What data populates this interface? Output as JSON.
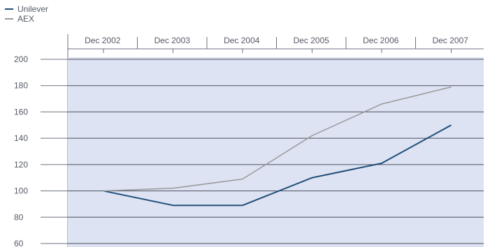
{
  "chart_data": {
    "type": "line",
    "x": [
      "Dec 2002",
      "Dec 2003",
      "Dec 2004",
      "Dec 2005",
      "Dec 2006",
      "Dec 2007"
    ],
    "series": [
      {
        "name": "Unilever",
        "color": "#1f4e79",
        "values": [
          100,
          89,
          89,
          110,
          121,
          150
        ]
      },
      {
        "name": "AEX",
        "color": "#999999",
        "values": [
          100,
          102,
          109,
          142,
          166,
          179
        ]
      }
    ],
    "yticks": [
      60,
      80,
      100,
      120,
      140,
      160,
      180,
      200
    ],
    "ylim": [
      60,
      200
    ],
    "title": "",
    "xlabel": "",
    "ylabel": "",
    "legend_position": "top-left",
    "x_axis_position": "top",
    "grid": true,
    "plot_background": "#dde3f3"
  }
}
